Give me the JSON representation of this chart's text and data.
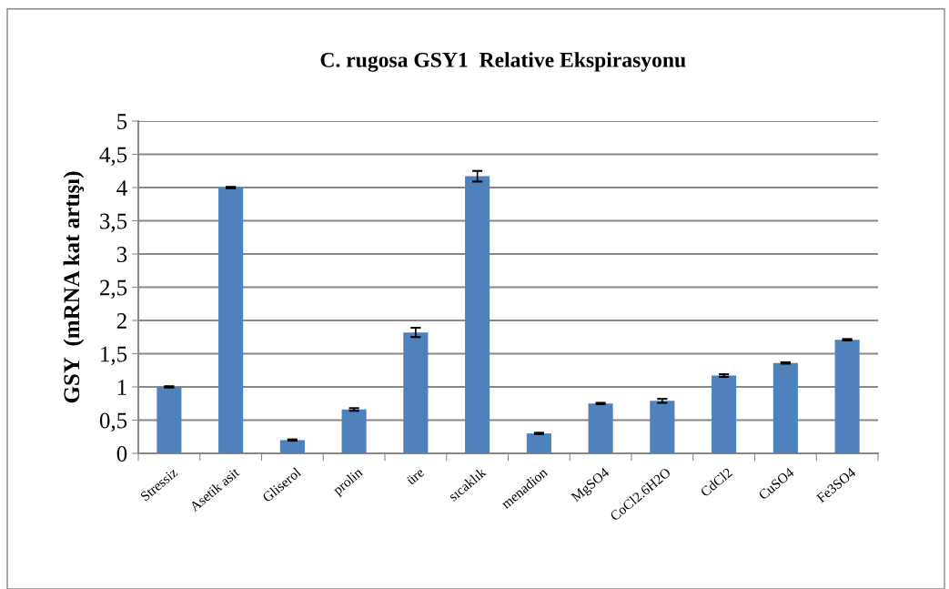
{
  "chart_data": {
    "type": "bar",
    "title": "C. rugosa GSY1  Relative Ekspirasyonu",
    "ylabel": "GSY  (mRNA kat artışı)",
    "categories": [
      "Stressiz",
      "Asetik asit",
      "Gliserol",
      "prolin",
      "üre",
      "sıcaklık",
      "menadion",
      "MgSO4",
      "CoCl2.6H2O",
      "CdCl2",
      "CuSO4",
      "Fe3SO4"
    ],
    "values": [
      1.0,
      4.0,
      0.2,
      0.66,
      1.82,
      4.17,
      0.3,
      0.75,
      0.79,
      1.17,
      1.36,
      1.71
    ],
    "errors": [
      0.01,
      0.01,
      0.01,
      0.02,
      0.07,
      0.08,
      0.01,
      0.01,
      0.03,
      0.02,
      0.01,
      0.01
    ],
    "color": "#4f81bd",
    "ylim": [
      0,
      5
    ],
    "yticks": [
      0,
      {
        "value": 0.5,
        "label": "0,5"
      },
      1,
      {
        "value": 1.5,
        "label": "1,5"
      },
      2,
      {
        "value": 2.5,
        "label": "2,5"
      },
      3,
      {
        "value": 3.5,
        "label": "3,5"
      },
      4,
      {
        "value": 4.5,
        "label": "4,5"
      },
      5
    ],
    "grid": "y",
    "legend": false
  }
}
